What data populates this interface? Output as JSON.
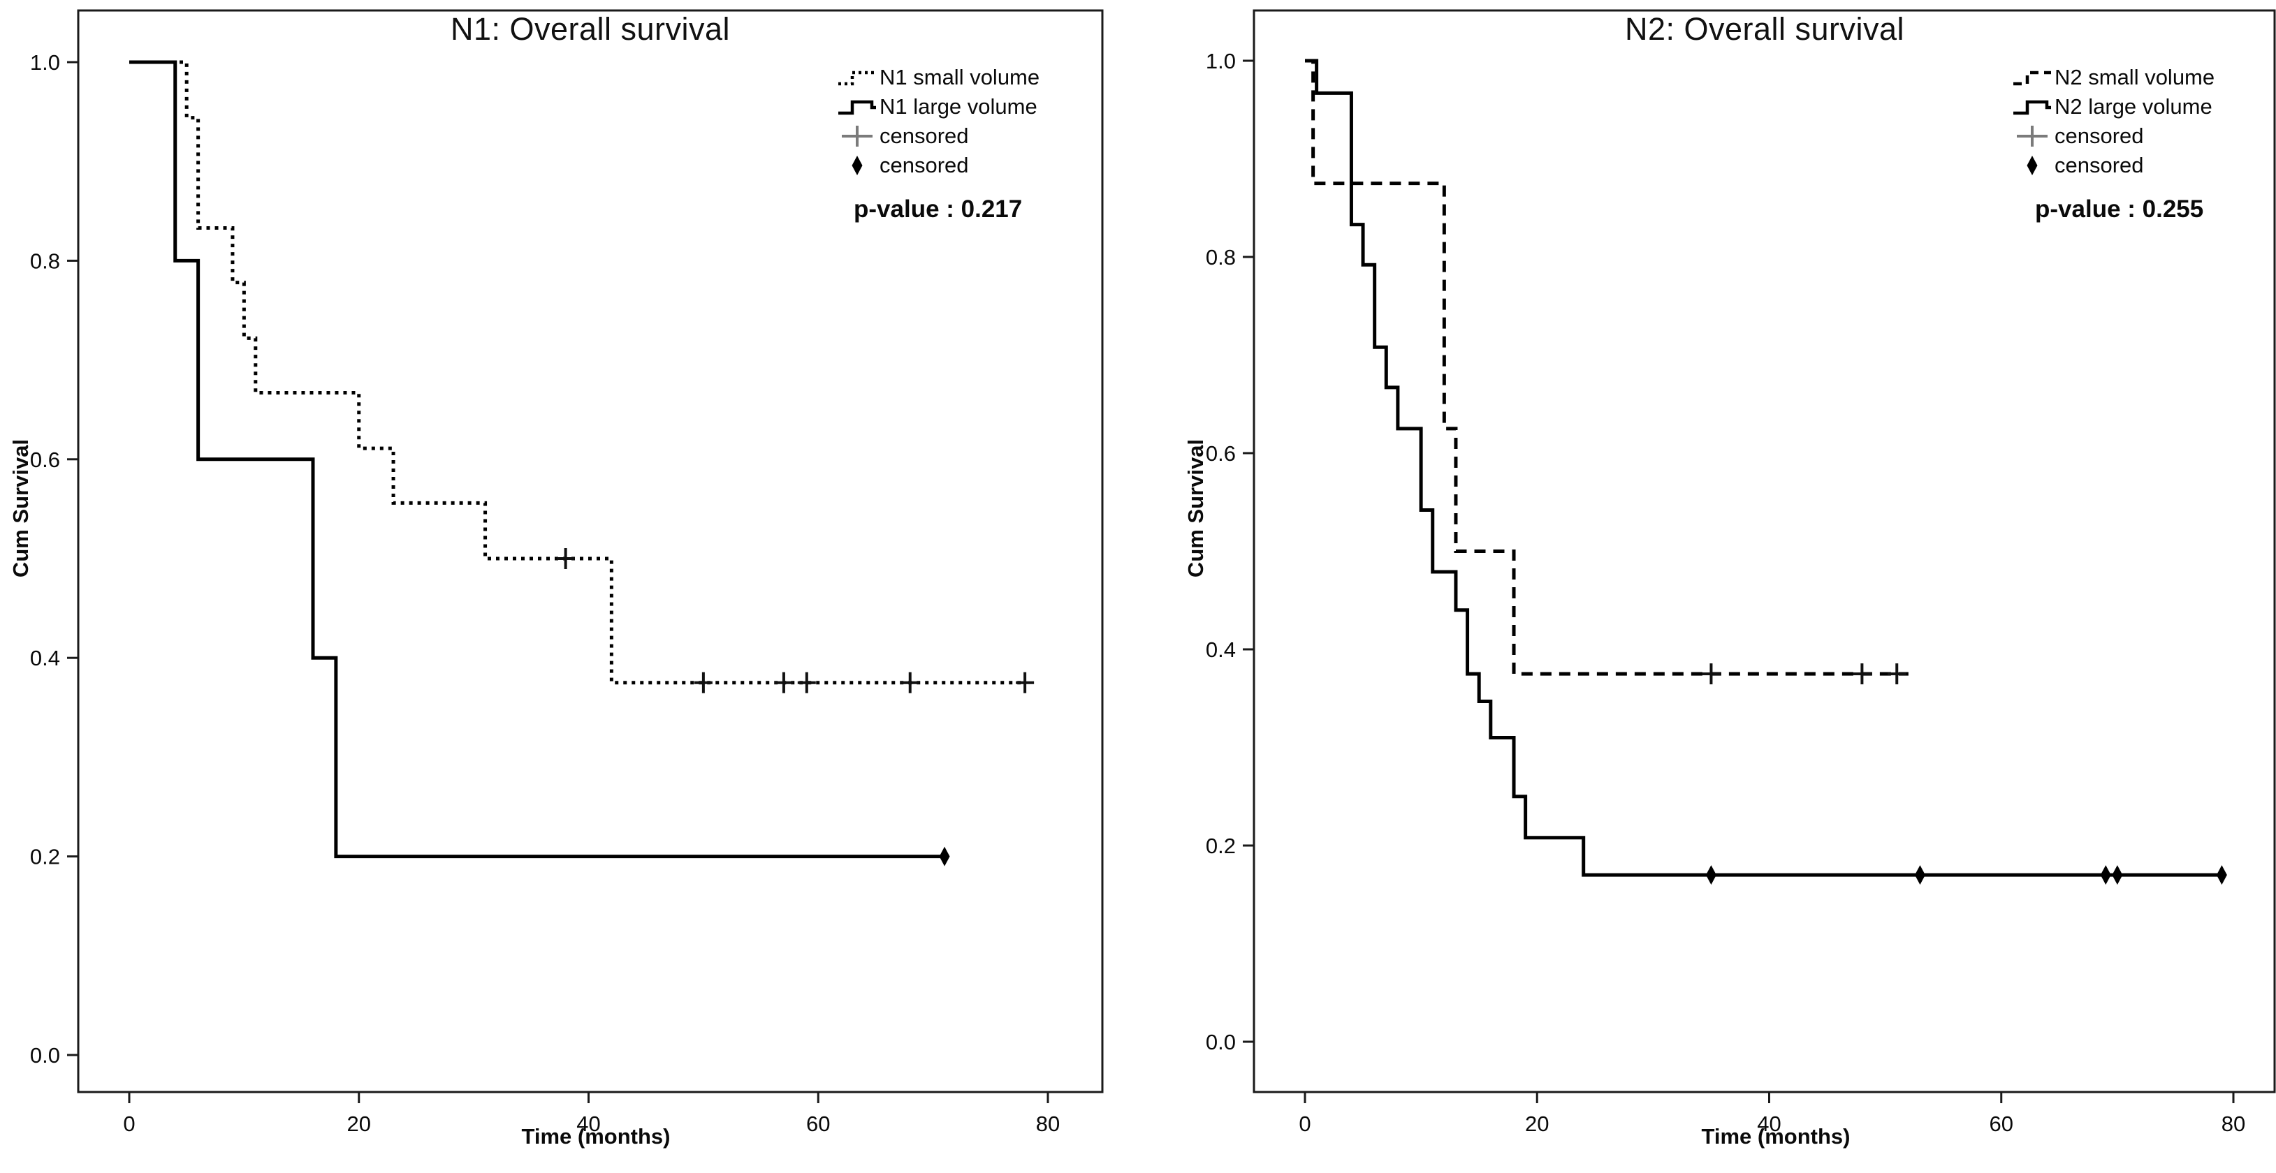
{
  "figure": {
    "background": "#ffffff",
    "curve_color": "#000000",
    "censor_plus_color": "#7b7b7b",
    "censor_diamond_color": "#000000"
  },
  "chart_data": [
    {
      "panel": "N1",
      "type": "line",
      "subtype": "kaplan-meier-step",
      "title": "N1: Overall survival",
      "xlabel": "Time (months)",
      "ylabel": "Cum Survival",
      "p_value_label": "p-value : 0.217",
      "x_ticks": [
        0,
        20,
        40,
        60,
        80
      ],
      "y_ticks": [
        {
          "v": 1.0,
          "label": "1.0"
        },
        {
          "v": 0.8,
          "label": "0.8"
        },
        {
          "v": 0.6,
          "label": "0.6"
        },
        {
          "v": 0.4,
          "label": "0.4"
        },
        {
          "v": 0.2,
          "label": "0.2"
        },
        {
          "v": 0.0,
          "label": "0.0"
        }
      ],
      "xlim": [
        -4.5,
        84.5
      ],
      "ylim": [
        -0.04,
        1.05
      ],
      "grid": false,
      "legend_position": "top-right",
      "legend": [
        {
          "label": "N1 small volume",
          "glyph": "dotted-step-line"
        },
        {
          "label": "N1 large volume",
          "glyph": "solid-step-line"
        },
        {
          "label": "censored",
          "glyph": "plus"
        },
        {
          "label": "censored",
          "glyph": "diamond"
        }
      ],
      "series": [
        {
          "name": "N1 small volume",
          "line_style": "dotted",
          "censor_symbol": "plus",
          "steps": [
            [
              0,
              1.0
            ],
            [
              5,
              0.944
            ],
            [
              6,
              0.833
            ],
            [
              9,
              0.778
            ],
            [
              10,
              0.722
            ],
            [
              11,
              0.667
            ],
            [
              20,
              0.611
            ],
            [
              23,
              0.556
            ],
            [
              31,
              0.5
            ],
            [
              42,
              0.375
            ]
          ],
          "end_time": 78,
          "censored_at": [
            [
              38,
              0.5
            ],
            [
              50,
              0.375
            ],
            [
              57,
              0.375
            ],
            [
              59,
              0.375
            ],
            [
              68,
              0.375
            ],
            [
              78,
              0.375
            ]
          ]
        },
        {
          "name": "N1 large volume",
          "line_style": "solid",
          "censor_symbol": "diamond",
          "steps": [
            [
              0,
              1.0
            ],
            [
              4,
              0.8
            ],
            [
              6,
              0.6
            ],
            [
              16,
              0.4
            ],
            [
              18,
              0.2
            ]
          ],
          "end_time": 71,
          "censored_at": [
            [
              71,
              0.2
            ]
          ]
        }
      ]
    },
    {
      "panel": "N2",
      "type": "line",
      "subtype": "kaplan-meier-step",
      "title": "N2: Overall survival",
      "xlabel": "Time (months)",
      "ylabel": "Cum Survival",
      "p_value_label": "p-value : 0.255",
      "x_ticks": [
        0,
        20,
        40,
        60,
        80
      ],
      "y_ticks": [
        {
          "v": 1.0,
          "label": "1.0"
        },
        {
          "v": 0.8,
          "label": "0.8"
        },
        {
          "v": 0.6,
          "label": "0.6"
        },
        {
          "v": 0.4,
          "label": "0.4"
        },
        {
          "v": 0.2,
          "label": "0.2"
        },
        {
          "v": 0.0,
          "label": "0.0"
        }
      ],
      "xlim": [
        -4.5,
        84.5
      ],
      "ylim": [
        -0.04,
        1.05
      ],
      "grid": false,
      "legend_position": "top-right",
      "legend": [
        {
          "label": "N2 small volume",
          "glyph": "dashed-step-line"
        },
        {
          "label": "N2 large volume",
          "glyph": "solid-step-line"
        },
        {
          "label": "censored",
          "glyph": "plus"
        },
        {
          "label": "censored",
          "glyph": "diamond"
        }
      ],
      "series": [
        {
          "name": "N2 small volume",
          "line_style": "dashed",
          "censor_symbol": "plus",
          "steps": [
            [
              0,
              1.0
            ],
            [
              0.7,
              0.875
            ],
            [
              12,
              0.625
            ],
            [
              13,
              0.5
            ],
            [
              18,
              0.375
            ]
          ],
          "end_time": 52,
          "censored_at": [
            [
              35,
              0.375
            ],
            [
              48,
              0.375
            ],
            [
              51,
              0.375
            ]
          ]
        },
        {
          "name": "N2 large volume",
          "line_style": "solid",
          "censor_symbol": "diamond",
          "steps": [
            [
              0,
              1.0
            ],
            [
              1,
              0.967
            ],
            [
              4,
              0.833
            ],
            [
              5,
              0.792
            ],
            [
              6,
              0.708
            ],
            [
              7,
              0.667
            ],
            [
              8,
              0.625
            ],
            [
              10,
              0.542
            ],
            [
              11,
              0.479
            ],
            [
              13,
              0.44
            ],
            [
              14,
              0.375
            ],
            [
              15,
              0.347
            ],
            [
              16,
              0.31
            ],
            [
              18,
              0.25
            ],
            [
              19,
              0.208
            ],
            [
              24,
              0.17
            ]
          ],
          "end_time": 79,
          "censored_at": [
            [
              35,
              0.17
            ],
            [
              53,
              0.17
            ],
            [
              69,
              0.17
            ],
            [
              70,
              0.17
            ],
            [
              79,
              0.17
            ]
          ]
        }
      ]
    }
  ]
}
